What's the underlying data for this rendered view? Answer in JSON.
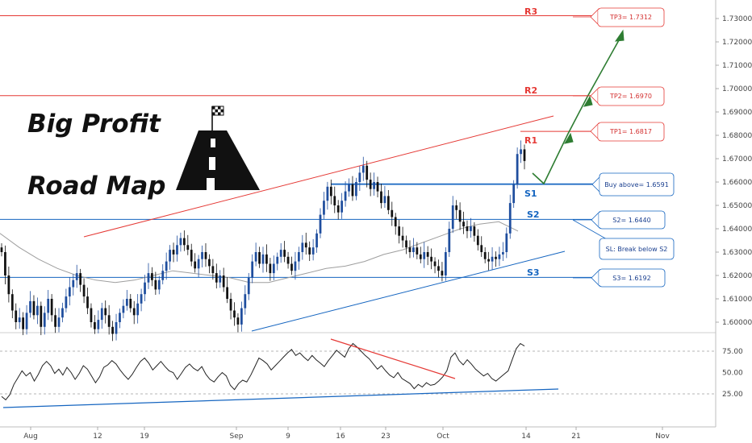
{
  "headline": {
    "line1": "Big Profit",
    "line2": "Road Map"
  },
  "icons": {
    "logo": "road-with-checkered-flag-icon"
  },
  "colors": {
    "bull": "#1f4e9e",
    "bear": "#111111",
    "resistance": "#e53935",
    "support": "#1565c0",
    "ma": "#9e9e9e",
    "arrow": "#2e7d32",
    "rsi": "#222222"
  },
  "chart_data": [
    {
      "type": "candlestick",
      "x_ticks": [
        "Aug",
        "12",
        "19",
        "Sep",
        "9",
        "16",
        "23",
        "Oct",
        "14",
        "21",
        "Nov"
      ],
      "ylim": [
        1.593,
        1.738
      ],
      "y_ticks": [
        "1.60000",
        "1.61000",
        "1.62000",
        "1.63000",
        "1.64000",
        "1.65000",
        "1.66000",
        "1.67000",
        "1.68000",
        "1.69000",
        "1.70000",
        "1.71000",
        "1.72000",
        "1.73000"
      ],
      "levels": [
        {
          "label": "R3",
          "price": 1.7312,
          "kind": "resistance"
        },
        {
          "label": "R2",
          "price": 1.697,
          "kind": "resistance"
        },
        {
          "label": "R1",
          "price": 1.6817,
          "kind": "resistance"
        },
        {
          "label": "S1",
          "price": 1.6591,
          "kind": "support"
        },
        {
          "label": "S2",
          "price": 1.644,
          "kind": "support"
        },
        {
          "label": "S3",
          "price": 1.6192,
          "kind": "support"
        }
      ],
      "annotations": [
        {
          "text": "TP3= 1.7312",
          "kind": "resistance"
        },
        {
          "text": "TP2= 1.6970",
          "kind": "resistance"
        },
        {
          "text": "TP1= 1.6817",
          "kind": "resistance"
        },
        {
          "text": "Buy above= 1.6591",
          "kind": "support"
        },
        {
          "text": "S2= 1.6440",
          "kind": "support"
        },
        {
          "text": "SL: Break below S2",
          "kind": "support"
        },
        {
          "text": "S3= 1.6192",
          "kind": "support"
        }
      ],
      "closes": [
        1.63,
        1.62,
        1.612,
        1.605,
        1.6,
        1.602,
        1.597,
        1.604,
        1.609,
        1.603,
        1.607,
        1.598,
        1.604,
        1.61,
        1.603,
        1.598,
        1.602,
        1.606,
        1.611,
        1.615,
        1.618,
        1.621,
        1.616,
        1.611,
        1.606,
        1.6,
        1.597,
        1.601,
        1.606,
        1.603,
        1.598,
        1.595,
        1.6,
        1.604,
        1.607,
        1.61,
        1.606,
        1.603,
        1.608,
        1.612,
        1.617,
        1.621,
        1.618,
        1.614,
        1.618,
        1.622,
        1.626,
        1.631,
        1.629,
        1.633,
        1.636,
        1.633,
        1.631,
        1.626,
        1.623,
        1.627,
        1.63,
        1.627,
        1.624,
        1.621,
        1.617,
        1.62,
        1.615,
        1.61,
        1.605,
        1.602,
        1.599,
        1.606,
        1.612,
        1.619,
        1.626,
        1.63,
        1.625,
        1.629,
        1.625,
        1.621,
        1.625,
        1.628,
        1.631,
        1.628,
        1.625,
        1.622,
        1.626,
        1.63,
        1.634,
        1.632,
        1.629,
        1.632,
        1.638,
        1.646,
        1.652,
        1.658,
        1.654,
        1.65,
        1.647,
        1.652,
        1.656,
        1.659,
        1.654,
        1.66,
        1.664,
        1.667,
        1.661,
        1.657,
        1.66,
        1.656,
        1.651,
        1.654,
        1.648,
        1.645,
        1.641,
        1.637,
        1.635,
        1.632,
        1.63,
        1.632,
        1.629,
        1.627,
        1.63,
        1.628,
        1.626,
        1.624,
        1.622,
        1.62,
        1.63,
        1.64,
        1.65,
        1.648,
        1.643,
        1.641,
        1.639,
        1.641,
        1.637,
        1.633,
        1.63,
        1.627,
        1.626,
        1.628,
        1.627,
        1.629,
        1.63,
        1.638,
        1.651,
        1.659,
        1.672,
        1.674,
        1.669
      ],
      "ma": [
        1.638,
        1.632,
        1.627,
        1.623,
        1.62,
        1.618,
        1.617,
        1.618,
        1.62,
        1.622,
        1.621,
        1.62,
        1.619,
        1.617,
        1.617,
        1.619,
        1.621,
        1.623,
        1.624,
        1.626,
        1.629,
        1.631,
        1.634,
        1.637,
        1.64,
        1.642,
        1.643,
        1.639
      ],
      "rsi": {
        "ylim": [
          0,
          100
        ],
        "y_ticks": [
          "25.00",
          "50.00",
          "75.00"
        ],
        "values": [
          22,
          18,
          24,
          36,
          44,
          52,
          46,
          50,
          40,
          48,
          58,
          63,
          58,
          49,
          54,
          47,
          56,
          50,
          42,
          49,
          58,
          54,
          46,
          38,
          45,
          56,
          59,
          64,
          60,
          53,
          47,
          42,
          48,
          56,
          63,
          67,
          61,
          53,
          58,
          63,
          57,
          52,
          50,
          42,
          49,
          56,
          60,
          55,
          52,
          57,
          48,
          42,
          39,
          45,
          50,
          46,
          35,
          30,
          37,
          41,
          39,
          47,
          57,
          67,
          64,
          60,
          53,
          58,
          63,
          68,
          73,
          77,
          70,
          73,
          68,
          64,
          70,
          65,
          61,
          57,
          64,
          70,
          76,
          72,
          68,
          78,
          84,
          80,
          75,
          70,
          66,
          60,
          54,
          58,
          52,
          47,
          44,
          50,
          43,
          40,
          37,
          31,
          36,
          33,
          38,
          35,
          36,
          40,
          45,
          52,
          68,
          73,
          64,
          59,
          65,
          60,
          54,
          50,
          46,
          49,
          43,
          40,
          44,
          48,
          52,
          65,
          78,
          84,
          81
        ]
      }
    }
  ]
}
